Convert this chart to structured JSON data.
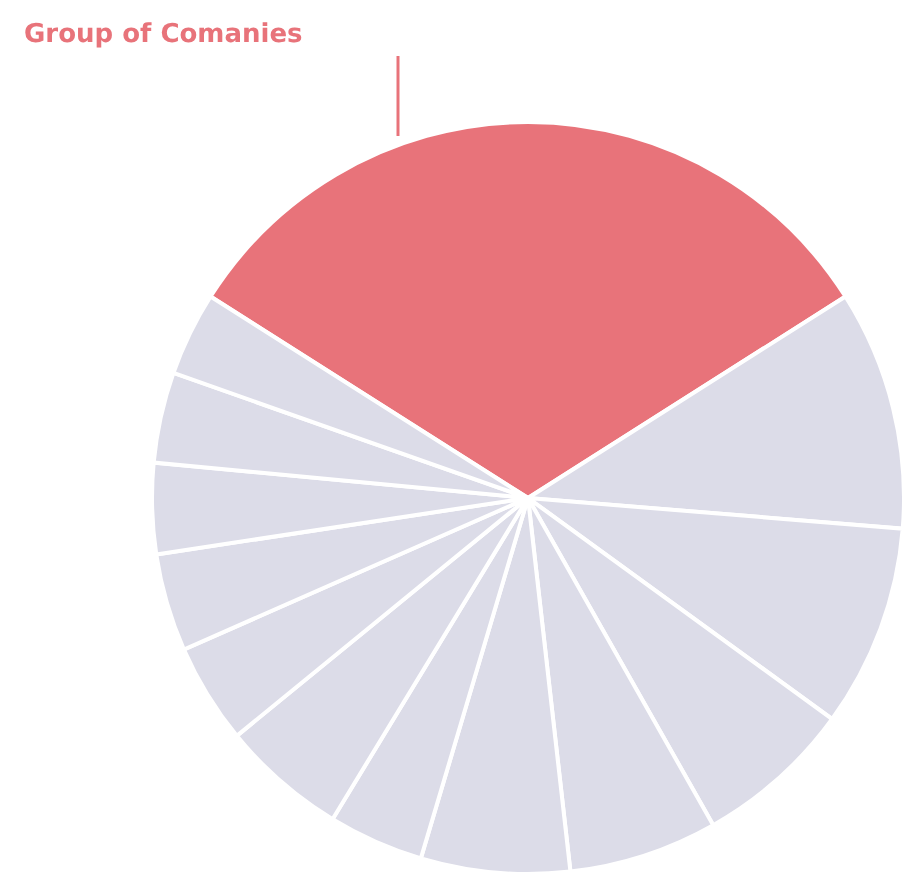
{
  "chart_data": {
    "type": "pie",
    "categories": [
      "Group of Comanies",
      null,
      null,
      null,
      null,
      null,
      null,
      null,
      null,
      null,
      null,
      null,
      null
    ],
    "values": [
      32.0,
      10.3,
      8.7,
      6.8,
      6.4,
      6.4,
      4.1,
      5.4,
      4.3,
      4.2,
      3.9,
      3.9,
      3.6
    ],
    "colors": [
      "#e8737a",
      "#dcdce8",
      "#dcdce8",
      "#dcdce8",
      "#dcdce8",
      "#dcdce8",
      "#dcdce8",
      "#dcdce8",
      "#dcdce8",
      "#dcdce8",
      "#dcdce8",
      "#dcdce8",
      "#dcdce8"
    ]
  }
}
